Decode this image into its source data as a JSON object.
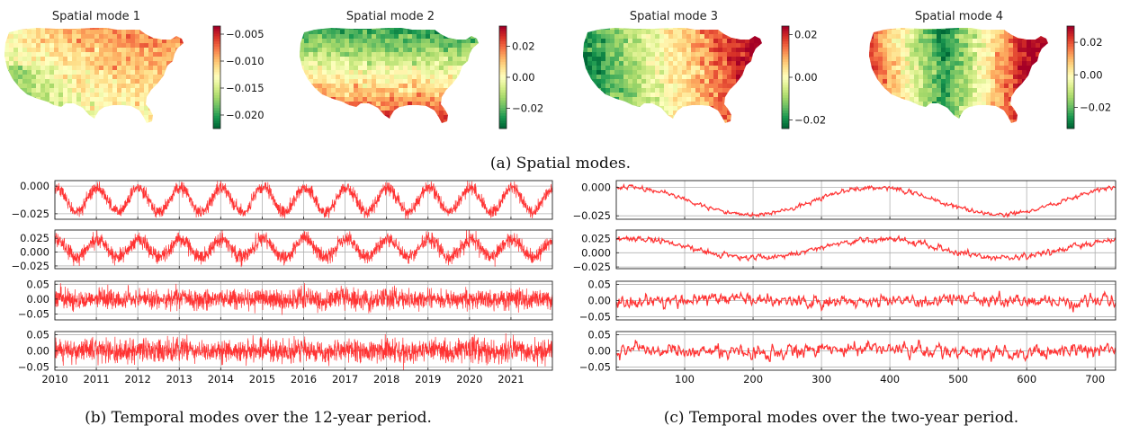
{
  "spatial": {
    "caption": "(a) Spatial modes.",
    "maps": [
      {
        "title": "Spatial mode 1",
        "cb_ticks": [
          "−0.005",
          "−0.010",
          "−0.015",
          "−0.020"
        ],
        "cb_values": [
          -0.005,
          -0.01,
          -0.015,
          -0.02
        ],
        "cb_range": [
          -0.0225,
          -0.0035
        ],
        "pattern": "uniform-negative, lowest in west and south-west"
      },
      {
        "title": "Spatial mode 2",
        "cb_ticks": [
          "0.02",
          "0.00",
          "−0.02"
        ],
        "cb_values": [
          0.02,
          0.0,
          -0.02
        ],
        "cb_range": [
          -0.033,
          0.033
        ],
        "pattern": "north negative (green), south positive (red)"
      },
      {
        "title": "Spatial mode 3",
        "cb_ticks": [
          "0.02",
          "0.00",
          "−0.02"
        ],
        "cb_values": [
          0.02,
          0.0,
          -0.02
        ],
        "cb_range": [
          -0.024,
          0.024
        ],
        "pattern": "west negative (green), east positive (red)"
      },
      {
        "title": "Spatial mode 4",
        "cb_ticks": [
          "0.02",
          "0.00",
          "−0.02"
        ],
        "cb_values": [
          0.02,
          0.0,
          -0.02
        ],
        "cb_range": [
          -0.033,
          0.03
        ],
        "pattern": "center negative (green), coasts positive (red)"
      }
    ],
    "colormap": [
      "#006837",
      "#1a9850",
      "#66bd63",
      "#a6d96a",
      "#d9ef8b",
      "#ffffbf",
      "#fee08b",
      "#fdae61",
      "#f46d43",
      "#d73027",
      "#a50026"
    ]
  },
  "chart_data": [
    {
      "type": "line",
      "caption": "(b) Temporal modes over the 12-year period.",
      "x_ticks": [
        "2010",
        "2011",
        "2012",
        "2013",
        "2014",
        "2015",
        "2016",
        "2017",
        "2018",
        "2019",
        "2020",
        "2021"
      ],
      "xlim": [
        2010,
        2022
      ],
      "grid": true,
      "line_color": "#ff3333",
      "panels": [
        {
          "y_ticks": [
            "0.000",
            "−0.025"
          ],
          "y_values": [
            0.0,
            -0.025
          ],
          "ylim": [
            -0.03,
            0.005
          ],
          "seasonal_period_years": 1,
          "mean": -0.0125,
          "amplitude": 0.011,
          "noise": 0.003
        },
        {
          "y_ticks": [
            "0.025",
            "0.000",
            "−0.025"
          ],
          "y_values": [
            0.025,
            0.0,
            -0.025
          ],
          "ylim": [
            -0.03,
            0.04
          ],
          "seasonal_period_years": 1,
          "mean": 0.007,
          "amplitude": 0.016,
          "noise": 0.007
        },
        {
          "y_ticks": [
            "0.05",
            "0.00",
            "−0.05"
          ],
          "y_values": [
            0.05,
            0.0,
            -0.05
          ],
          "ylim": [
            -0.07,
            0.06
          ],
          "seasonal_period_years": 1,
          "mean": 0.0,
          "amplitude": 0.004,
          "noise": 0.017
        },
        {
          "y_ticks": [
            "0.05",
            "0.00",
            "−0.05"
          ],
          "y_values": [
            0.05,
            0.0,
            -0.05
          ],
          "ylim": [
            -0.06,
            0.06
          ],
          "seasonal_period_years": 1,
          "mean": 0.0,
          "amplitude": 0.005,
          "noise": 0.018
        }
      ]
    },
    {
      "type": "line",
      "caption": "(c) Temporal modes over the two-year period.",
      "x_ticks": [
        "100",
        "200",
        "300",
        "400",
        "500",
        "600",
        "700"
      ],
      "xlim": [
        0,
        730
      ],
      "grid": true,
      "line_color": "#ff3333",
      "panels": [
        {
          "y_ticks": [
            "0.000",
            "−0.025"
          ],
          "y_values": [
            0.0,
            -0.025
          ],
          "ylim": [
            -0.028,
            0.006
          ],
          "seasonal_period_days": 365,
          "phase_peak_day": 380,
          "mean": -0.012,
          "amplitude": 0.012,
          "noise": 0.0015
        },
        {
          "y_ticks": [
            "0.025",
            "0.000",
            "−0.025"
          ],
          "y_values": [
            0.025,
            0.0,
            -0.025
          ],
          "ylim": [
            -0.028,
            0.04
          ],
          "seasonal_period_days": 365,
          "phase_peak_day": 385,
          "mean": 0.008,
          "amplitude": 0.017,
          "noise": 0.004
        },
        {
          "y_ticks": [
            "0.05",
            "0.00",
            "−0.05"
          ],
          "y_values": [
            0.05,
            0.0,
            -0.05
          ],
          "ylim": [
            -0.06,
            0.06
          ],
          "seasonal_period_days": 365,
          "phase_peak_day": 120,
          "mean": 0.0,
          "amplitude": 0.004,
          "noise": 0.014
        },
        {
          "y_ticks": [
            "0.05",
            "0.00",
            "−0.05"
          ],
          "y_values": [
            0.05,
            0.0,
            -0.05
          ],
          "ylim": [
            -0.06,
            0.06
          ],
          "seasonal_period_days": 365,
          "phase_peak_day": 365,
          "mean": 0.0,
          "amplitude": 0.005,
          "noise": 0.015
        }
      ]
    }
  ]
}
